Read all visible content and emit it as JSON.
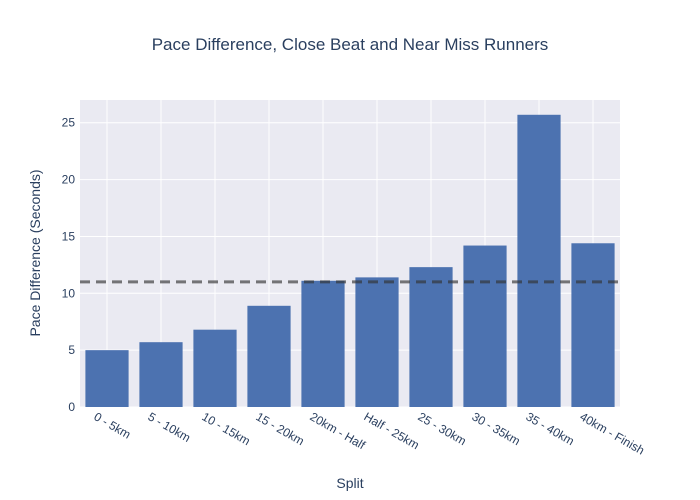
{
  "chart_data": {
    "type": "bar",
    "title": "Pace Difference, Close Beat and Near Miss Runners",
    "xlabel": "Split",
    "ylabel": "Pace Difference (Seconds)",
    "categories": [
      "0 - 5km",
      "5 - 10km",
      "10 - 15km",
      "15 - 20km",
      "20km - Half",
      "Half - 25km",
      "25 - 30km",
      "30 - 35km",
      "35 - 40km",
      "40km - Finish"
    ],
    "values": [
      5.0,
      5.7,
      6.8,
      8.9,
      11.1,
      11.4,
      12.3,
      14.2,
      25.7,
      14.4
    ],
    "ylim": [
      0,
      27
    ],
    "yticks": [
      0,
      5,
      10,
      15,
      20,
      25
    ],
    "reference_line": {
      "value": 11.0,
      "style": "dashed",
      "color": "#333333"
    },
    "grid": true,
    "legend": "none",
    "colors": {
      "bar": "#4c72b0",
      "plot_background": "#eaeaf2",
      "grid": "#ffffff",
      "text": "#2a3f5f"
    }
  }
}
